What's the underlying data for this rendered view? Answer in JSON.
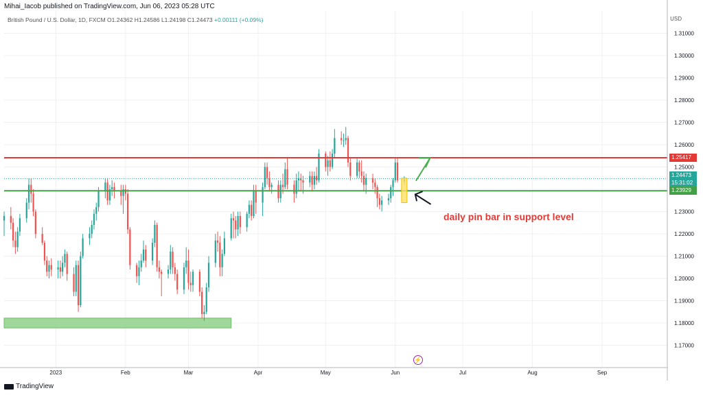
{
  "header": {
    "published": "Mihai_Iacob published on TradingView.com, Jun 06, 2023 05:28 UTC",
    "symbol_line": "British Pound / U.S. Dollar, 1D, FXCM  O1.24362  H1.24586  L1.24198  C1.24473",
    "change": "+0.00111 (+0.09%)",
    "currency": "USD"
  },
  "price_labels": {
    "resistance": "1.25417",
    "current": "1.24473",
    "countdown": "15:31:02",
    "support": "1.23929"
  },
  "annotation": "daily pin bar in support level",
  "footer": {
    "brand": "TradingView"
  },
  "colors": {
    "up": "#26a69a",
    "down": "#ef5350",
    "resistance": "#e53935",
    "support": "#43a047",
    "zone": "#9fd89a",
    "arrow_up": "#4caf50",
    "arrow_annot": "#131722",
    "highlight": "#ffe066",
    "current": "#26a69a"
  },
  "icons": {
    "flash": "lightning-icon"
  },
  "chart_data": {
    "type": "candlestick",
    "title": "British Pound / U.S. Dollar, 1D, FXCM",
    "y_axis": {
      "range": [
        1.16,
        1.32
      ],
      "ticks": [
        "1.17000",
        "1.18000",
        "1.19000",
        "1.20000",
        "1.21000",
        "1.22000",
        "1.23000",
        "1.24000",
        "1.25000",
        "1.26000",
        "1.27000",
        "1.28000",
        "1.29000",
        "1.30000",
        "1.31000"
      ]
    },
    "x_axis": {
      "range": [
        "2022-12-09",
        "2023-09-30"
      ],
      "ticks": [
        {
          "date": "2023-01-01",
          "label": "2023"
        },
        {
          "date": "2023-02-01",
          "label": "Feb"
        },
        {
          "date": "2023-03-01",
          "label": "Mar"
        },
        {
          "date": "2023-04-01",
          "label": "Apr"
        },
        {
          "date": "2023-05-01",
          "label": "May"
        },
        {
          "date": "2023-06-01",
          "label": "Jun"
        },
        {
          "date": "2023-07-01",
          "label": "Jul"
        },
        {
          "date": "2023-08-01",
          "label": "Aug"
        },
        {
          "date": "2023-09-01",
          "label": "Sep"
        }
      ]
    },
    "levels": {
      "resistance": 1.25417,
      "support": 1.23929,
      "current": 1.24473
    },
    "demand_zone": {
      "from": "2022-12-09",
      "to": "2023-03-20",
      "low": 1.1778,
      "high": 1.1822
    },
    "pin_bar": {
      "date": "2023-06-05",
      "open": 1.24362,
      "high": 1.24586,
      "low": 1.24198,
      "close": 1.24473
    },
    "candles": [
      [
        "2022-12-09",
        1.226,
        1.23,
        1.219,
        1.228
      ],
      [
        "2022-12-12",
        1.228,
        1.232,
        1.222,
        1.225
      ],
      [
        "2022-12-13",
        1.225,
        1.227,
        1.214,
        1.217
      ],
      [
        "2022-12-14",
        1.217,
        1.221,
        1.211,
        1.214
      ],
      [
        "2022-12-15",
        1.214,
        1.223,
        1.212,
        1.221
      ],
      [
        "2022-12-16",
        1.221,
        1.229,
        1.219,
        1.227
      ],
      [
        "2022-12-19",
        1.227,
        1.236,
        1.225,
        1.234
      ],
      [
        "2022-12-20",
        1.234,
        1.245,
        1.231,
        1.242
      ],
      [
        "2022-12-21",
        1.242,
        1.245,
        1.234,
        1.238
      ],
      [
        "2022-12-22",
        1.238,
        1.24,
        1.228,
        1.23
      ],
      [
        "2022-12-23",
        1.23,
        1.231,
        1.218,
        1.22
      ],
      [
        "2022-12-26",
        1.22,
        1.223,
        1.215,
        1.216
      ],
      [
        "2022-12-27",
        1.216,
        1.217,
        1.206,
        1.208
      ],
      [
        "2022-12-28",
        1.208,
        1.21,
        1.201,
        1.203
      ],
      [
        "2022-12-29",
        1.203,
        1.208,
        1.2,
        1.206
      ],
      [
        "2022-12-30",
        1.206,
        1.209,
        1.201,
        1.204
      ],
      [
        "2023-01-02",
        1.204,
        1.208,
        1.2,
        1.205
      ],
      [
        "2023-01-03",
        1.205,
        1.208,
        1.2,
        1.203
      ],
      [
        "2023-01-04",
        1.203,
        1.21,
        1.201,
        1.207
      ],
      [
        "2023-01-05",
        1.207,
        1.213,
        1.205,
        1.211
      ],
      [
        "2023-01-06",
        1.211,
        1.212,
        1.199,
        1.202
      ],
      [
        "2023-01-09",
        1.202,
        1.205,
        1.192,
        1.194
      ],
      [
        "2023-01-10",
        1.194,
        1.208,
        1.192,
        1.206
      ],
      [
        "2023-01-11",
        1.206,
        1.208,
        1.185,
        1.188
      ],
      [
        "2023-01-12",
        1.188,
        1.212,
        1.187,
        1.21
      ],
      [
        "2023-01-13",
        1.21,
        1.22,
        1.209,
        1.218
      ],
      [
        "2023-01-16",
        1.218,
        1.223,
        1.215,
        1.22
      ],
      [
        "2023-01-17",
        1.22,
        1.226,
        1.218,
        1.224
      ],
      [
        "2023-01-18",
        1.224,
        1.231,
        1.222,
        1.229
      ],
      [
        "2023-01-19",
        1.229,
        1.234,
        1.226,
        1.232
      ],
      [
        "2023-01-20",
        1.232,
        1.241,
        1.23,
        1.239
      ],
      [
        "2023-01-23",
        1.239,
        1.245,
        1.236,
        1.243
      ],
      [
        "2023-01-24",
        1.243,
        1.245,
        1.233,
        1.235
      ],
      [
        "2023-01-25",
        1.235,
        1.242,
        1.233,
        1.24
      ],
      [
        "2023-01-26",
        1.24,
        1.244,
        1.237,
        1.241
      ],
      [
        "2023-01-27",
        1.241,
        1.243,
        1.236,
        1.239
      ],
      [
        "2023-01-30",
        1.239,
        1.242,
        1.233,
        1.237
      ],
      [
        "2023-01-31",
        1.237,
        1.242,
        1.229,
        1.24
      ],
      [
        "2023-02-01",
        1.24,
        1.242,
        1.235,
        1.238
      ],
      [
        "2023-02-02",
        1.238,
        1.24,
        1.22,
        1.222
      ],
      [
        "2023-02-03",
        1.222,
        1.223,
        1.204,
        1.206
      ],
      [
        "2023-02-06",
        1.206,
        1.207,
        1.198,
        1.201
      ],
      [
        "2023-02-07",
        1.201,
        1.208,
        1.197,
        1.205
      ],
      [
        "2023-02-08",
        1.205,
        1.211,
        1.203,
        1.208
      ],
      [
        "2023-02-09",
        1.208,
        1.217,
        1.207,
        1.213
      ],
      [
        "2023-02-10",
        1.213,
        1.215,
        1.205,
        1.208
      ],
      [
        "2023-02-13",
        1.208,
        1.218,
        1.206,
        1.216
      ],
      [
        "2023-02-14",
        1.216,
        1.226,
        1.214,
        1.224
      ],
      [
        "2023-02-15",
        1.224,
        1.225,
        1.203,
        1.205
      ],
      [
        "2023-02-16",
        1.205,
        1.208,
        1.2,
        1.203
      ],
      [
        "2023-02-17",
        1.203,
        1.204,
        1.192,
        1.202
      ],
      [
        "2023-02-20",
        1.202,
        1.206,
        1.2,
        1.204
      ],
      [
        "2023-02-21",
        1.204,
        1.215,
        1.202,
        1.212
      ],
      [
        "2023-02-22",
        1.212,
        1.214,
        1.202,
        1.205
      ],
      [
        "2023-02-23",
        1.205,
        1.207,
        1.199,
        1.202
      ],
      [
        "2023-02-24",
        1.202,
        1.204,
        1.193,
        1.195
      ],
      [
        "2023-02-27",
        1.195,
        1.207,
        1.193,
        1.205
      ],
      [
        "2023-02-28",
        1.205,
        1.214,
        1.202,
        1.208
      ],
      [
        "2023-03-01",
        1.208,
        1.213,
        1.195,
        1.198
      ],
      [
        "2023-03-02",
        1.198,
        1.203,
        1.194,
        1.197
      ],
      [
        "2023-03-03",
        1.197,
        1.204,
        1.194,
        1.203
      ],
      [
        "2023-03-06",
        1.203,
        1.204,
        1.192,
        1.194
      ],
      [
        "2023-03-07",
        1.194,
        1.196,
        1.182,
        1.184
      ],
      [
        "2023-03-08",
        1.184,
        1.188,
        1.181,
        1.185
      ],
      [
        "2023-03-09",
        1.185,
        1.198,
        1.184,
        1.196
      ],
      [
        "2023-03-10",
        1.196,
        1.21,
        1.194,
        1.207
      ],
      [
        "2023-03-13",
        1.207,
        1.22,
        1.205,
        1.217
      ],
      [
        "2023-03-14",
        1.217,
        1.221,
        1.212,
        1.216
      ],
      [
        "2023-03-15",
        1.216,
        1.219,
        1.201,
        1.205
      ],
      [
        "2023-03-16",
        1.205,
        1.213,
        1.201,
        1.211
      ],
      [
        "2023-03-17",
        1.211,
        1.221,
        1.21,
        1.218
      ],
      [
        "2023-03-20",
        1.218,
        1.229,
        1.217,
        1.227
      ],
      [
        "2023-03-21",
        1.227,
        1.23,
        1.218,
        1.226
      ],
      [
        "2023-03-22",
        1.226,
        1.228,
        1.218,
        1.222
      ],
      [
        "2023-03-23",
        1.222,
        1.23,
        1.219,
        1.228
      ],
      [
        "2023-03-24",
        1.228,
        1.23,
        1.22,
        1.223
      ],
      [
        "2023-03-27",
        1.223,
        1.23,
        1.221,
        1.229
      ],
      [
        "2023-03-28",
        1.229,
        1.235,
        1.227,
        1.233
      ],
      [
        "2023-03-29",
        1.233,
        1.235,
        1.226,
        1.228
      ],
      [
        "2023-03-30",
        1.228,
        1.242,
        1.227,
        1.239
      ],
      [
        "2023-03-31",
        1.239,
        1.242,
        1.229,
        1.234
      ],
      [
        "2023-04-03",
        1.234,
        1.243,
        1.228,
        1.241
      ],
      [
        "2023-04-04",
        1.241,
        1.252,
        1.24,
        1.25
      ],
      [
        "2023-04-05",
        1.25,
        1.252,
        1.242,
        1.245
      ],
      [
        "2023-04-06",
        1.245,
        1.248,
        1.239,
        1.241
      ],
      [
        "2023-04-07",
        1.241,
        1.243,
        1.238,
        1.242
      ],
      [
        "2023-04-10",
        1.242,
        1.244,
        1.234,
        1.236
      ],
      [
        "2023-04-11",
        1.236,
        1.244,
        1.234,
        1.242
      ],
      [
        "2023-04-12",
        1.242,
        1.247,
        1.238,
        1.241
      ],
      [
        "2023-04-13",
        1.241,
        1.252,
        1.24,
        1.249
      ],
      [
        "2023-04-14",
        1.249,
        1.254,
        1.24,
        1.242
      ],
      [
        "2023-04-17",
        1.242,
        1.244,
        1.234,
        1.238
      ],
      [
        "2023-04-18",
        1.238,
        1.247,
        1.236,
        1.244
      ],
      [
        "2023-04-19",
        1.244,
        1.248,
        1.239,
        1.245
      ],
      [
        "2023-04-20",
        1.245,
        1.247,
        1.239,
        1.244
      ],
      [
        "2023-04-21",
        1.244,
        1.246,
        1.238,
        1.243
      ],
      [
        "2023-04-24",
        1.243,
        1.248,
        1.241,
        1.246
      ],
      [
        "2023-04-25",
        1.246,
        1.248,
        1.239,
        1.242
      ],
      [
        "2023-04-26",
        1.242,
        1.248,
        1.24,
        1.246
      ],
      [
        "2023-04-27",
        1.246,
        1.25,
        1.242,
        1.244
      ],
      [
        "2023-04-28",
        1.244,
        1.258,
        1.243,
        1.256
      ],
      [
        "2023-05-01",
        1.256,
        1.257,
        1.248,
        1.25
      ],
      [
        "2023-05-02",
        1.25,
        1.255,
        1.246,
        1.253
      ],
      [
        "2023-05-03",
        1.253,
        1.257,
        1.248,
        1.25
      ],
      [
        "2023-05-04",
        1.25,
        1.258,
        1.249,
        1.256
      ],
      [
        "2023-05-05",
        1.256,
        1.267,
        1.254,
        1.263
      ],
      [
        "2023-05-08",
        1.263,
        1.266,
        1.26,
        1.262
      ],
      [
        "2023-05-09",
        1.262,
        1.265,
        1.259,
        1.262
      ],
      [
        "2023-05-10",
        1.262,
        1.268,
        1.26,
        1.263
      ],
      [
        "2023-05-11",
        1.263,
        1.264,
        1.25,
        1.252
      ],
      [
        "2023-05-12",
        1.252,
        1.254,
        1.244,
        1.246
      ],
      [
        "2023-05-15",
        1.246,
        1.254,
        1.245,
        1.252
      ],
      [
        "2023-05-16",
        1.252,
        1.253,
        1.245,
        1.248
      ],
      [
        "2023-05-17",
        1.248,
        1.253,
        1.243,
        1.246
      ],
      [
        "2023-05-18",
        1.246,
        1.248,
        1.239,
        1.242
      ],
      [
        "2023-05-19",
        1.242,
        1.247,
        1.238,
        1.245
      ],
      [
        "2023-05-22",
        1.245,
        1.247,
        1.24,
        1.243
      ],
      [
        "2023-05-23",
        1.243,
        1.245,
        1.238,
        1.241
      ],
      [
        "2023-05-24",
        1.241,
        1.242,
        1.232,
        1.236
      ],
      [
        "2023-05-25",
        1.236,
        1.238,
        1.231,
        1.233
      ],
      [
        "2023-05-26",
        1.233,
        1.237,
        1.23,
        1.235
      ],
      [
        "2023-05-29",
        1.235,
        1.238,
        1.233,
        1.236
      ],
      [
        "2023-05-30",
        1.236,
        1.242,
        1.234,
        1.241
      ],
      [
        "2023-05-31",
        1.241,
        1.245,
        1.237,
        1.244
      ],
      [
        "2023-06-01",
        1.244,
        1.254,
        1.243,
        1.252
      ],
      [
        "2023-06-02",
        1.252,
        1.254,
        1.243,
        1.244
      ],
      [
        "2023-06-05",
        1.24362,
        1.24586,
        1.24198,
        1.24473
      ]
    ]
  }
}
